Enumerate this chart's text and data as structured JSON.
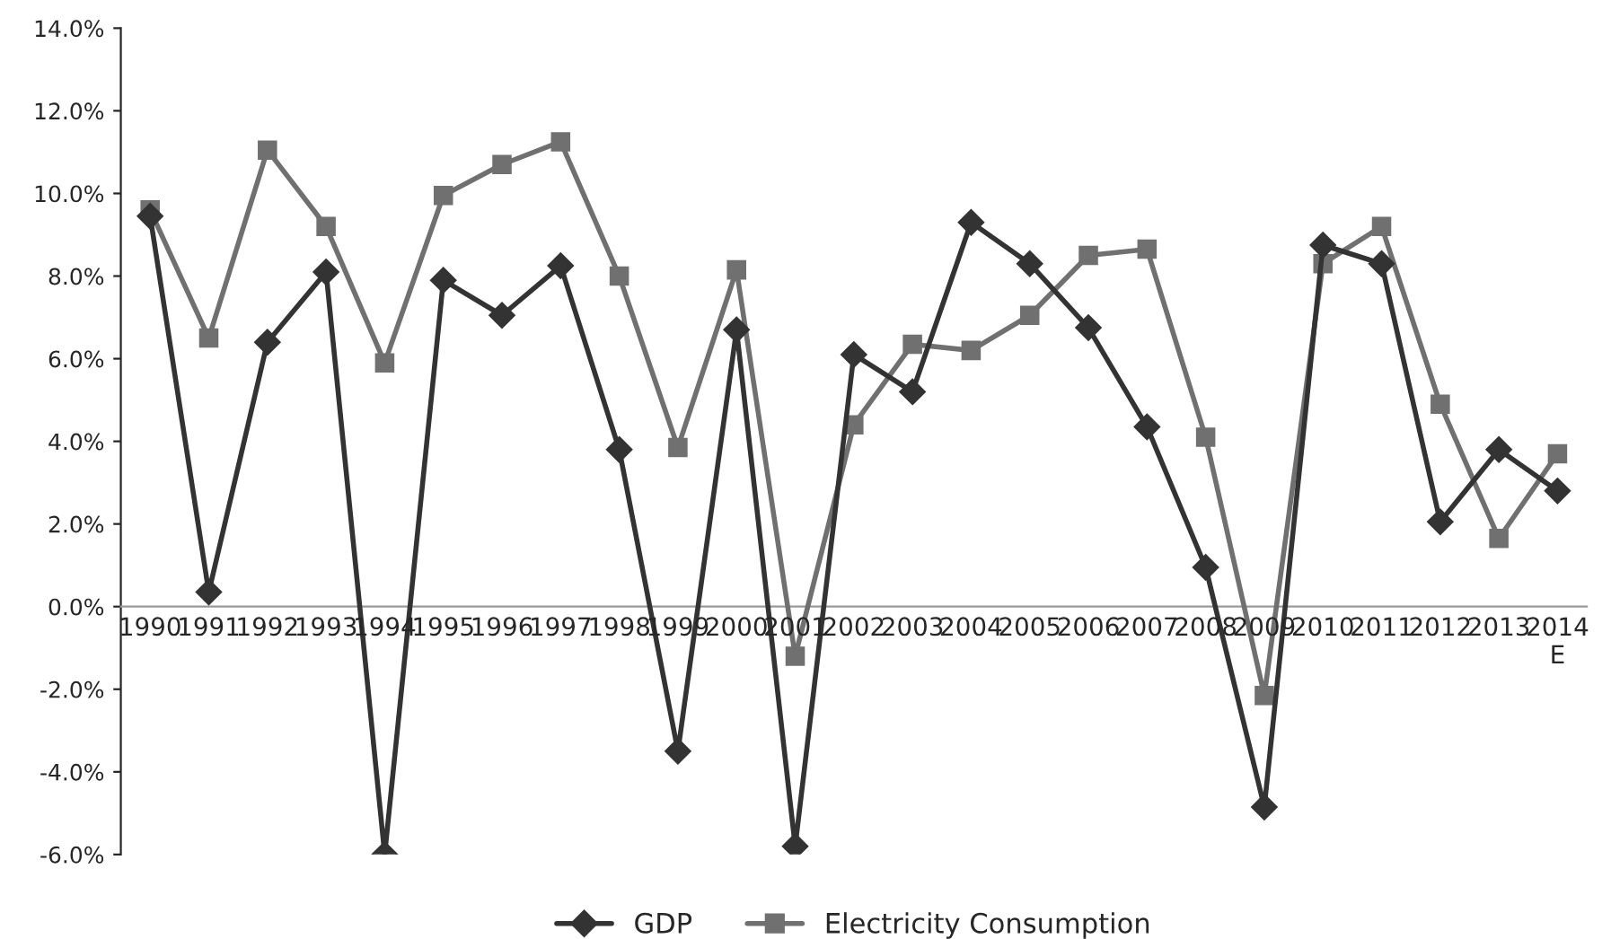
{
  "chart_data": {
    "type": "line",
    "categories": [
      "1990",
      "1991",
      "1992",
      "1993",
      "1994",
      "1995",
      "1996",
      "1997",
      "1998",
      "1999",
      "2000",
      "2001",
      "2002",
      "2003",
      "2004",
      "2005",
      "2006",
      "2007",
      "2008",
      "2009",
      "2010",
      "2011",
      "2012",
      "2013",
      "2014\nE"
    ],
    "series": [
      {
        "name": "GDP",
        "color": "#333333",
        "marker": "diamond",
        "values": [
          9.45,
          0.35,
          6.4,
          8.1,
          -6.0,
          7.9,
          7.05,
          8.25,
          3.8,
          -3.5,
          6.7,
          -5.8,
          6.1,
          5.2,
          9.3,
          8.3,
          6.75,
          4.35,
          0.95,
          -4.85,
          8.75,
          8.3,
          2.05,
          3.8,
          2.8
        ]
      },
      {
        "name": "Electricity Consumption",
        "color": "#707070",
        "marker": "square",
        "values": [
          9.6,
          6.5,
          11.05,
          9.2,
          5.9,
          9.95,
          10.7,
          11.25,
          8.0,
          3.85,
          8.15,
          -1.2,
          4.4,
          6.35,
          6.2,
          7.05,
          8.5,
          8.65,
          4.1,
          -2.15,
          8.3,
          9.2,
          4.9,
          1.65,
          3.7
        ]
      }
    ],
    "ylim": [
      -6,
      14
    ],
    "yticks": [
      {
        "value": -6,
        "label": "-6.0%"
      },
      {
        "value": -4,
        "label": "-4.0%"
      },
      {
        "value": -2,
        "label": "-2.0%"
      },
      {
        "value": 0,
        "label": "0.0%"
      },
      {
        "value": 2,
        "label": "2.0%"
      },
      {
        "value": 4,
        "label": "4.0%"
      },
      {
        "value": 6,
        "label": "6.0%"
      },
      {
        "value": 8,
        "label": "8.0%"
      },
      {
        "value": 10,
        "label": "10.0%"
      },
      {
        "value": 12,
        "label": "12.0%"
      },
      {
        "value": 14,
        "label": "14.0%"
      }
    ],
    "grid": false,
    "legend": "bottom",
    "line_style": "solid"
  }
}
